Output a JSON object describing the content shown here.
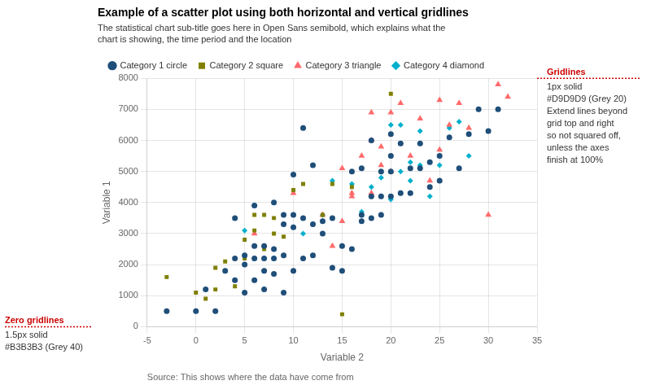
{
  "chart_data": {
    "type": "scatter",
    "title": "Example of a scatter plot using both horizontal and vertical gridlines",
    "subtitle": "The statistical chart sub-title goes here in Open Sans semibold, which explains what the\nchart is showing, the time period and the location",
    "xlabel": "Variable 2",
    "ylabel": "Variable 1",
    "source": "Source: This shows where the data have come from",
    "annotations": [
      {
        "title": "Gridlines",
        "text": "1px solid\n#D9D9D9 (Grey 20)\nExtend lines beyond\ngrid top and right\nso not squared off,\nunless the axes\nfinish at 100%",
        "color": "#CC0000"
      },
      {
        "title": "Zero gridlines",
        "text": "1.5px solid\n#B3B3B3 (Grey 40)",
        "color": "#CC0000"
      }
    ],
    "xlim": [
      -5,
      35
    ],
    "ylim": [
      0,
      8000
    ],
    "xticks": [
      -5,
      0,
      5,
      10,
      15,
      20,
      25,
      30,
      35
    ],
    "yticks": [
      0,
      1000,
      2000,
      3000,
      4000,
      5000,
      6000,
      7000,
      8000
    ],
    "grid": true,
    "legend": "top",
    "series": [
      {
        "name": "Category 1 circle",
        "color": "#1F4E79",
        "marker": "circle",
        "x": [
          -3,
          0,
          1,
          2,
          3,
          4,
          4,
          4,
          5,
          5,
          5,
          6,
          6,
          6,
          6,
          7,
          7,
          7,
          7,
          8,
          8,
          8,
          8,
          9,
          9,
          9,
          9,
          10,
          10,
          10,
          10,
          11,
          11,
          11,
          12,
          12,
          12,
          13,
          13,
          14,
          14,
          15,
          15,
          16,
          16,
          17,
          17,
          17,
          18,
          18,
          18,
          19,
          19,
          19,
          20,
          20,
          20,
          20,
          21,
          21,
          22,
          22,
          23,
          23,
          24,
          24,
          25,
          25,
          26,
          27,
          28,
          29,
          30,
          31
        ],
        "values": [
          500,
          500,
          1200,
          500,
          1800,
          1500,
          2200,
          3500,
          1100,
          2000,
          2300,
          1500,
          2200,
          2600,
          3900,
          1200,
          1800,
          2200,
          2600,
          1700,
          2200,
          2500,
          4000,
          1100,
          2300,
          3300,
          3600,
          1800,
          3200,
          3600,
          4900,
          2200,
          3500,
          6400,
          2300,
          3300,
          5200,
          3000,
          3400,
          1900,
          3500,
          1800,
          2600,
          2500,
          5000,
          3400,
          3600,
          5100,
          3500,
          4200,
          6000,
          3600,
          4200,
          5000,
          4200,
          5000,
          5500,
          6200,
          4300,
          5900,
          4300,
          5100,
          5100,
          5900,
          4500,
          5300,
          4700,
          5500,
          6100,
          5100,
          6200,
          7000,
          6300,
          7000
        ]
      },
      {
        "name": "Category 2 square",
        "color": "#7F7F00",
        "marker": "square",
        "x": [
          -3,
          0,
          1,
          2,
          2,
          3,
          4,
          5,
          5,
          6,
          6,
          7,
          7,
          8,
          8,
          9,
          9,
          10,
          11,
          13,
          14,
          15,
          16,
          20
        ],
        "values": [
          1600,
          1100,
          900,
          1200,
          1900,
          2100,
          1300,
          2200,
          2800,
          3600,
          3100,
          2500,
          3600,
          3000,
          3500,
          2900,
          3300,
          4400,
          4600,
          3600,
          4600,
          400,
          4500,
          7500
        ]
      },
      {
        "name": "Category 3 triangle",
        "color": "#FF6B6B",
        "marker": "triangle",
        "x": [
          6,
          10,
          13,
          14,
          15,
          15,
          16,
          16,
          17,
          18,
          18,
          18,
          19,
          19,
          20,
          20,
          21,
          22,
          23,
          24,
          25,
          25,
          26,
          27,
          28,
          30,
          31,
          32
        ],
        "values": [
          3000,
          4300,
          3600,
          2600,
          3400,
          5100,
          4200,
          4300,
          5500,
          4300,
          6000,
          6900,
          5200,
          5800,
          5000,
          6900,
          7200,
          5500,
          6700,
          4700,
          5700,
          7300,
          6500,
          7200,
          6400,
          3600,
          7800,
          7400
        ]
      },
      {
        "name": "Category 4 diamond",
        "color": "#00B0CC",
        "marker": "diamond",
        "x": [
          5,
          11,
          13,
          14,
          16,
          17,
          18,
          19,
          20,
          20,
          21,
          21,
          22,
          22,
          23,
          23,
          24,
          25,
          26,
          27,
          28
        ],
        "values": [
          3100,
          3000,
          3600,
          4700,
          4600,
          3700,
          4500,
          4800,
          4100,
          6500,
          5000,
          6500,
          4700,
          5300,
          5200,
          6300,
          4200,
          5200,
          6400,
          6600,
          5500
        ]
      }
    ]
  }
}
